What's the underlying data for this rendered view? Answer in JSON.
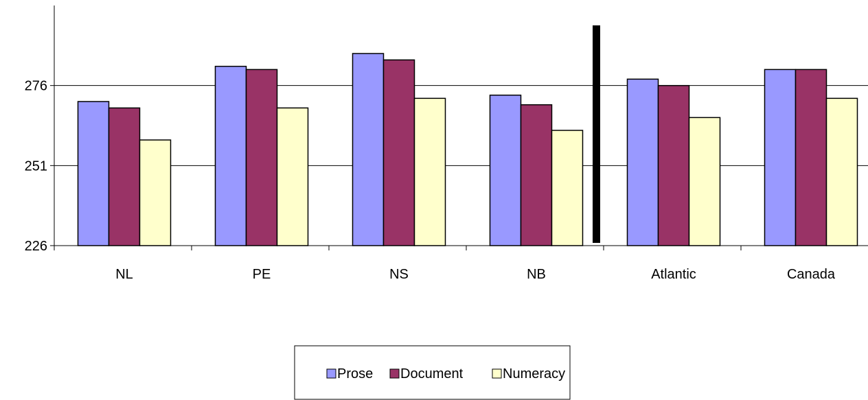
{
  "chart_data": {
    "type": "bar",
    "categories": [
      "NL",
      "PE",
      "NS",
      "NB",
      "Atlantic",
      "Canada"
    ],
    "series": [
      {
        "name": "Prose",
        "values": [
          271,
          282,
          286,
          273,
          278,
          281
        ]
      },
      {
        "name": "Document",
        "values": [
          269,
          281,
          284,
          270,
          276,
          281
        ]
      },
      {
        "name": "Numeracy",
        "values": [
          259,
          269,
          272,
          262,
          266,
          272
        ]
      }
    ],
    "series_colors": [
      "#9999FF",
      "#993366",
      "#FFFFCC"
    ],
    "ylim": [
      226,
      301
    ],
    "yticks": [
      226,
      251,
      276
    ],
    "grid": true,
    "legend_position": "bottom",
    "separator_after_category": "NB"
  }
}
